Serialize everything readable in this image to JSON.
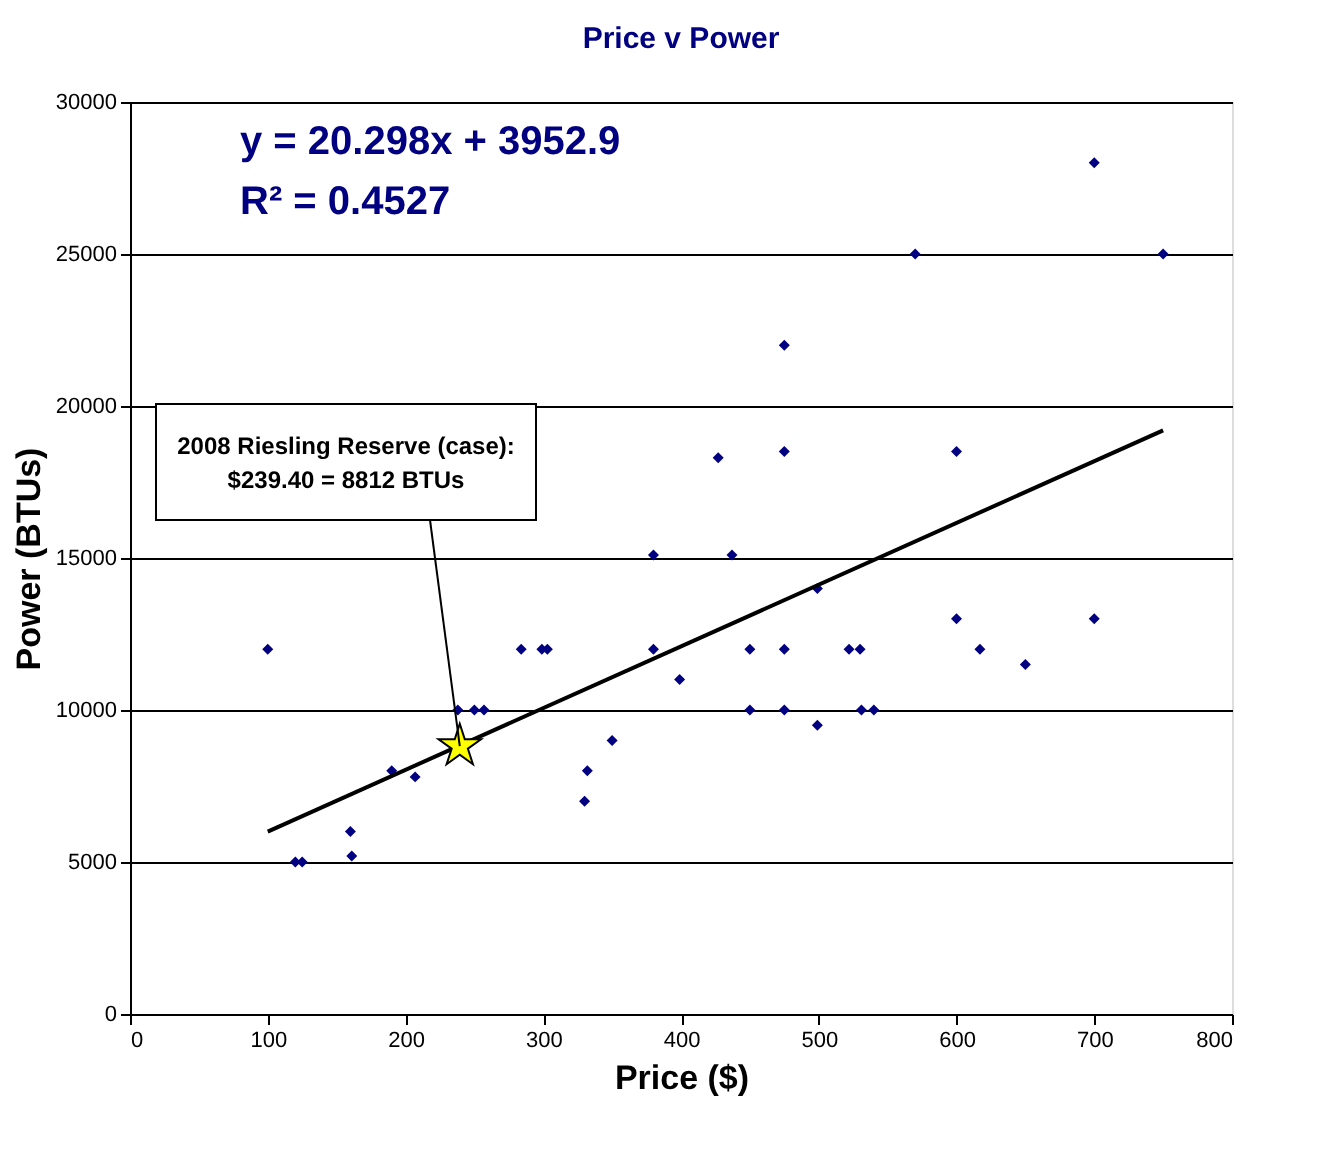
{
  "chart_data": {
    "type": "scatter",
    "title": "Price v Power",
    "xlabel": "Price ($)",
    "ylabel": "Power (BTUs)",
    "xlim": [
      0,
      800
    ],
    "xticks": [
      0,
      100,
      200,
      300,
      400,
      500,
      600,
      700,
      800
    ],
    "ylim": [
      0,
      30000
    ],
    "yticks": [
      0,
      5000,
      10000,
      15000,
      20000,
      25000,
      30000
    ],
    "grid": "y",
    "series": [
      {
        "marker": "diamond",
        "color": "#000080",
        "x": [
          100,
          120,
          125,
          160,
          161,
          190,
          207,
          238,
          250,
          257,
          284,
          299,
          303,
          330,
          332,
          350,
          380,
          380,
          399,
          427,
          437,
          450,
          450,
          475,
          475,
          475,
          475,
          499,
          499,
          522,
          530,
          531,
          540,
          570,
          600,
          600,
          617,
          650,
          700,
          700,
          750
        ],
        "values": [
          12000,
          5000,
          5000,
          6000,
          5200,
          8000,
          7800,
          10000,
          10000,
          10000,
          12000,
          12000,
          12000,
          7000,
          8000,
          9000,
          15100,
          12000,
          11000,
          18300,
          15100,
          12000,
          10000,
          12000,
          10000,
          22000,
          18500,
          9500,
          14000,
          12000,
          12000,
          10000,
          10000,
          25000,
          18500,
          13000,
          12000,
          11500,
          13000,
          28000,
          25000
        ]
      },
      {
        "type": "line",
        "color": "#000000",
        "x": [
          100,
          750
        ],
        "values": [
          6000,
          19200
        ]
      },
      {
        "marker": "star",
        "color": "#ffff00",
        "x": [
          239.4
        ],
        "values": [
          8812
        ]
      }
    ],
    "annotations": [
      "y = 20.298x + 3952.9",
      "R² = 0.4527",
      {
        "text": "2008 Riesling Reserve (case):\n$239.40 = 8812 BTUs",
        "x": 239.4,
        "y": 8812
      }
    ]
  }
}
